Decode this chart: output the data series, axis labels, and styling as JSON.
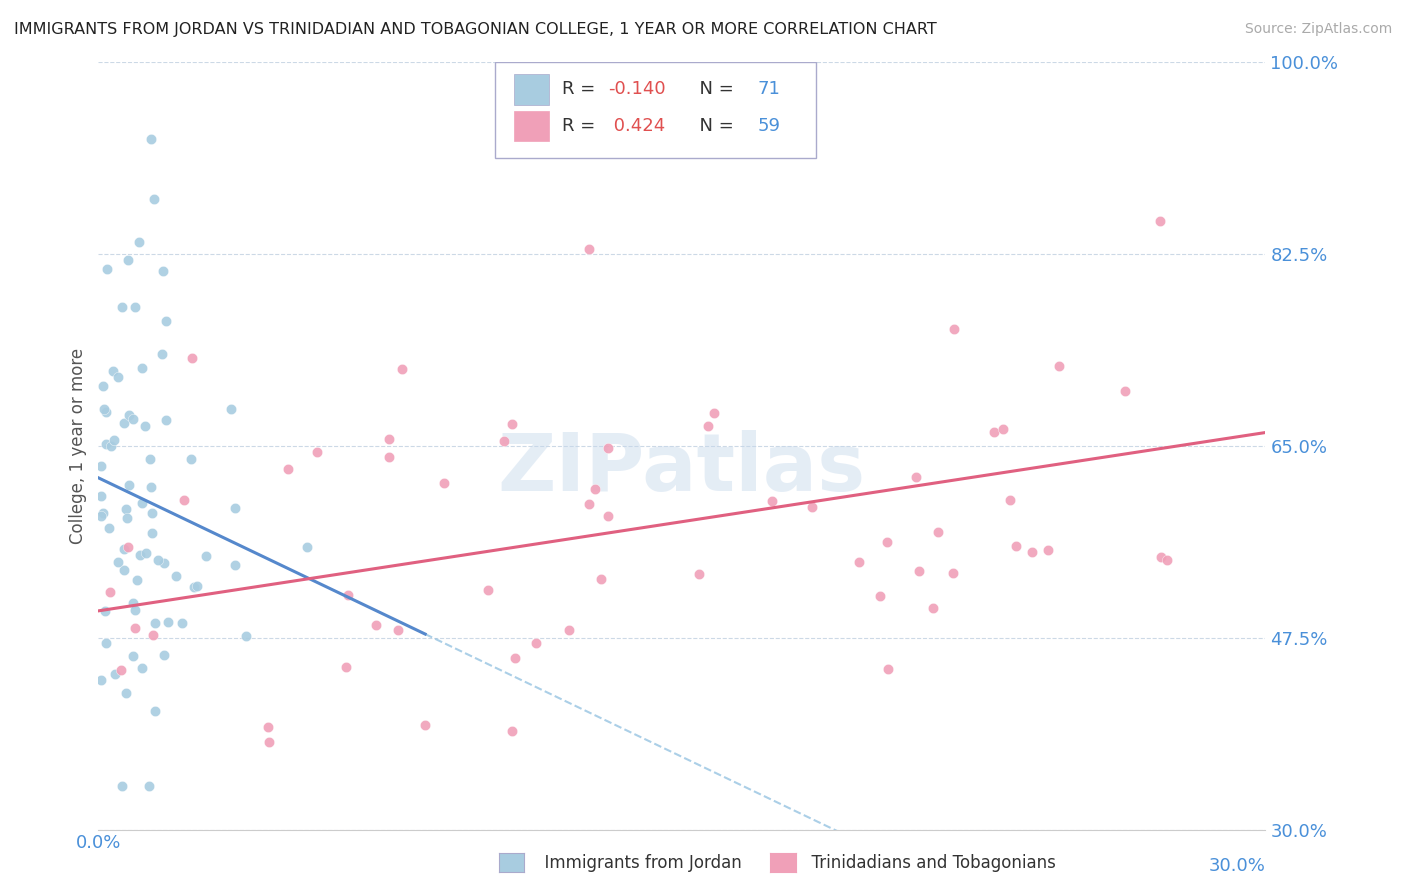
{
  "title": "IMMIGRANTS FROM JORDAN VS TRINIDADIAN AND TOBAGONIAN COLLEGE, 1 YEAR OR MORE CORRELATION CHART",
  "source": "Source: ZipAtlas.com",
  "ylabel": "College, 1 year or more",
  "xmin": 0.0,
  "xmax": 1.0,
  "ymin": 0.3,
  "ymax": 1.0,
  "yticks": [
    0.3,
    0.475,
    0.65,
    0.825,
    1.0
  ],
  "ytick_labels": [
    "30.0%",
    "47.5%",
    "65.0%",
    "82.5%",
    "100.0%"
  ],
  "series1_color": "#a8cce0",
  "series2_color": "#f0a0b8",
  "trend1_solid_color": "#5588cc",
  "trend2_solid_color": "#e06080",
  "trend1_dash_color": "#88bbdd",
  "r1": -0.14,
  "n1": 71,
  "r2": 0.424,
  "n2": 59,
  "background_color": "#ffffff",
  "grid_color": "#c0d0e0",
  "watermark": "ZIPatlas",
  "legend_r1_color": "#e05050",
  "legend_n1_color": "#4a90d9",
  "legend_r2_color": "#e05050",
  "legend_n2_color": "#4a90d9"
}
